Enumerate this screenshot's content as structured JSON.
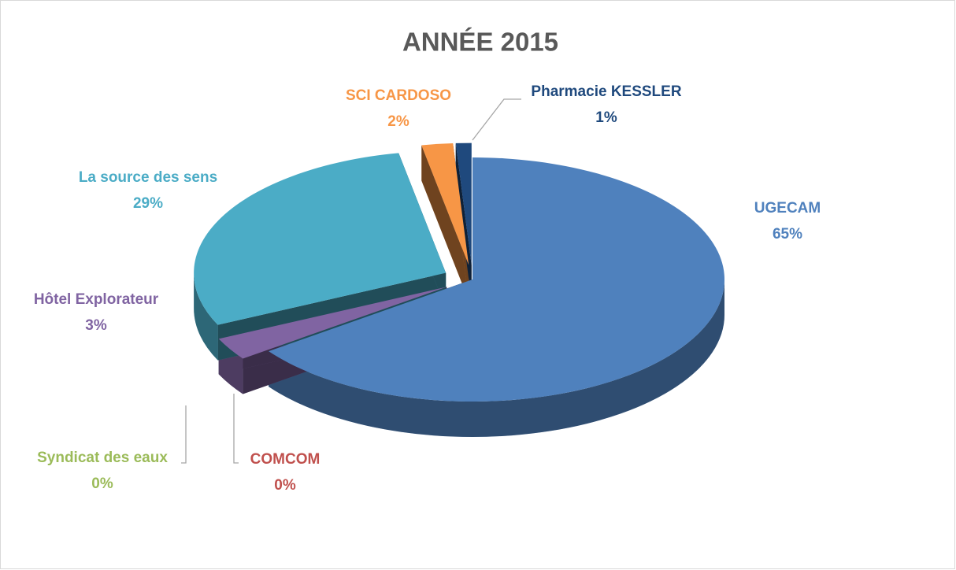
{
  "chart_data": {
    "type": "pie",
    "title": "ANNÉE 2015",
    "categories": [
      "UGECAM",
      "COMCOM",
      "Syndicat des eaux",
      "Hôtel Explorateur",
      "La source des sens",
      "SCI CARDOSO",
      "Pharmacie KESSLER"
    ],
    "values": [
      65,
      0,
      0,
      3,
      29,
      2,
      1
    ],
    "value_labels": [
      "65%",
      "0%",
      "0%",
      "3%",
      "29%",
      "2%",
      "1%"
    ],
    "colors": [
      "#4f81bd",
      "#c0504d",
      "#9bbb59",
      "#8064a2",
      "#4bacc6",
      "#f79646",
      "#1f497d"
    ],
    "label_colors": [
      "#4f81bd",
      "#c0504d",
      "#9bbb59",
      "#8064a2",
      "#4bacc6",
      "#f79646",
      "#1f497d"
    ]
  }
}
